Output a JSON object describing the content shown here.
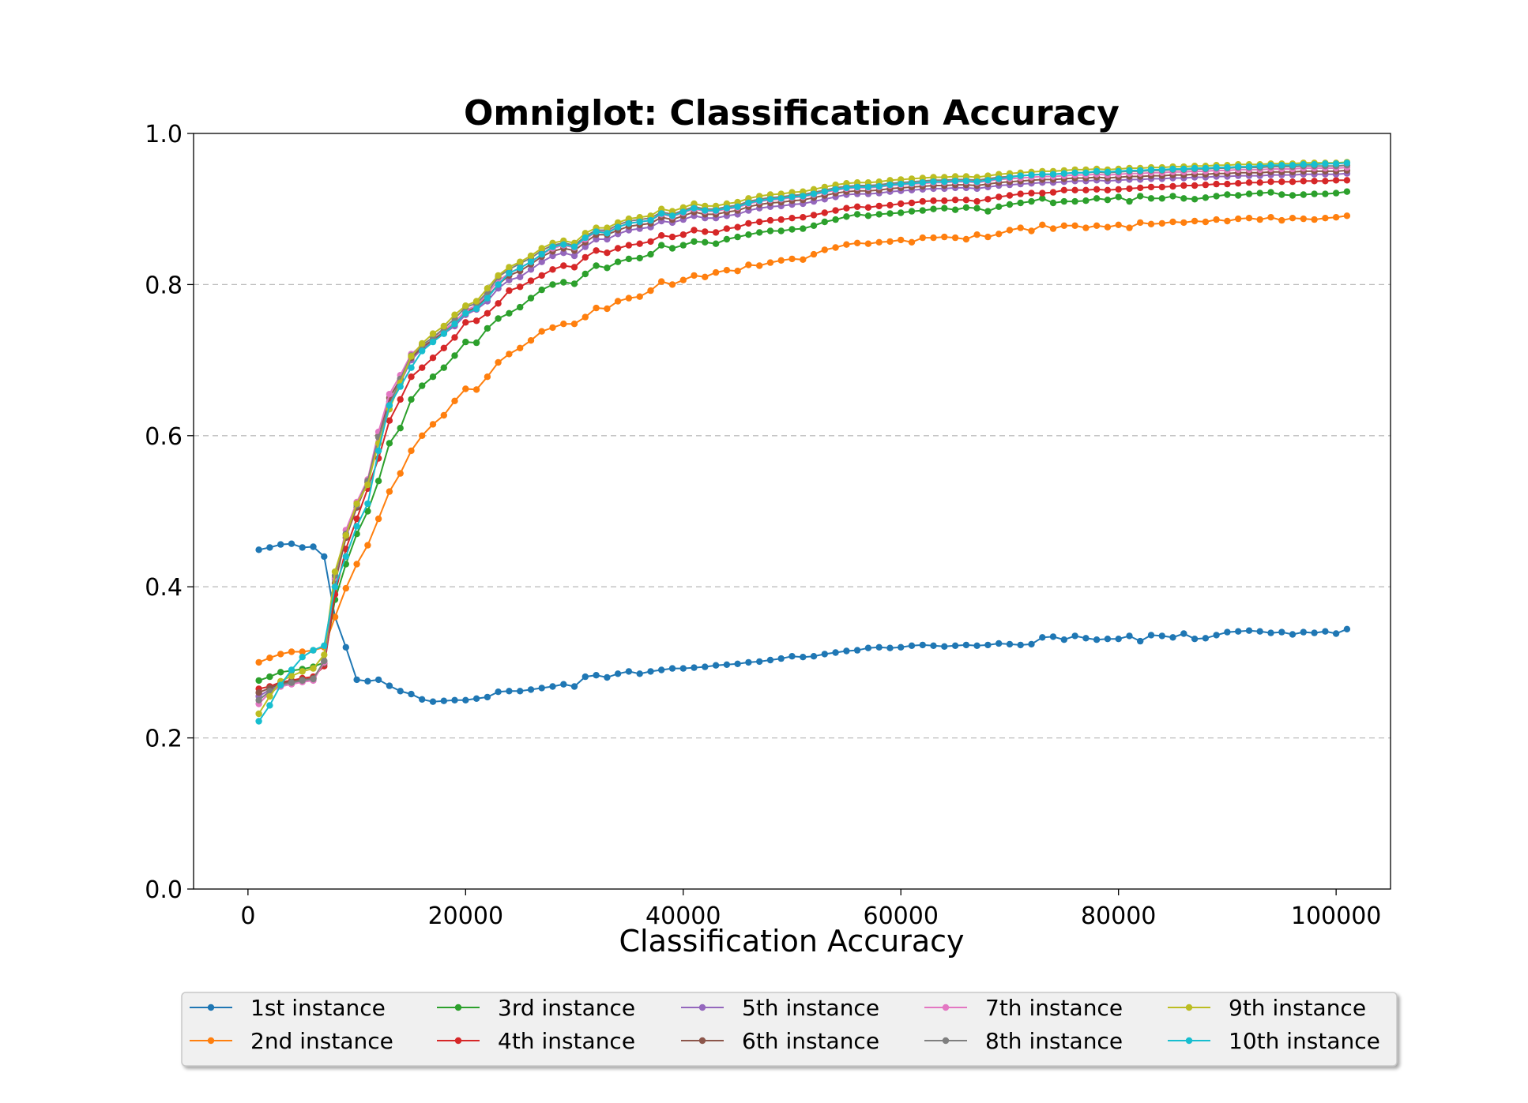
{
  "chart_data": {
    "type": "line",
    "title": "Omniglot: Classification Accuracy",
    "xlabel": "Classification Accuracy",
    "ylabel": "",
    "xlim": [
      -5000,
      105000
    ],
    "ylim": [
      0.0,
      1.0
    ],
    "xticks": [
      0,
      20000,
      40000,
      60000,
      80000,
      100000
    ],
    "xtick_labels": [
      "0",
      "20000",
      "40000",
      "60000",
      "80000",
      "100000"
    ],
    "yticks": [
      0.0,
      0.2,
      0.4,
      0.6,
      0.8,
      1.0
    ],
    "ytick_labels": [
      "0.0",
      "0.2",
      "0.4",
      "0.6",
      "0.8",
      "1.0"
    ],
    "grid": "horizontal dashed",
    "legend_position": "bottom, outside plot, 5 columns",
    "x_start": 1000,
    "x_step": 1000,
    "series": [
      {
        "name": "1st instance",
        "color": "#1f77b4",
        "values": [
          0.449,
          0.452,
          0.456,
          0.457,
          0.452,
          0.453,
          0.44,
          0.36,
          0.32,
          0.277,
          0.275,
          0.277,
          0.269,
          0.262,
          0.258,
          0.251,
          0.248,
          0.249,
          0.25,
          0.25,
          0.252,
          0.254,
          0.261,
          0.262,
          0.262,
          0.264,
          0.266,
          0.268,
          0.271,
          0.268,
          0.281,
          0.283,
          0.28,
          0.285,
          0.288,
          0.285,
          0.288,
          0.29,
          0.292,
          0.292,
          0.293,
          0.294,
          0.296,
          0.297,
          0.298,
          0.3,
          0.301,
          0.303,
          0.305,
          0.308,
          0.307,
          0.308,
          0.311,
          0.313,
          0.315,
          0.316,
          0.319,
          0.32,
          0.319,
          0.32,
          0.322,
          0.323,
          0.322,
          0.321,
          0.322,
          0.323,
          0.322,
          0.323,
          0.325,
          0.324,
          0.323,
          0.324,
          0.333,
          0.334,
          0.33,
          0.335,
          0.332,
          0.33,
          0.331,
          0.331,
          0.335,
          0.328,
          0.336,
          0.335,
          0.333,
          0.338,
          0.331,
          0.332,
          0.336,
          0.34,
          0.341,
          0.342,
          0.341,
          0.339,
          0.34,
          0.337,
          0.34,
          0.339,
          0.341,
          0.338,
          0.344
        ]
      },
      {
        "name": "2nd instance",
        "color": "#ff7f0e",
        "values": [
          0.3,
          0.306,
          0.311,
          0.314,
          0.314,
          0.316,
          0.32,
          0.36,
          0.398,
          0.43,
          0.455,
          0.49,
          0.526,
          0.55,
          0.58,
          0.6,
          0.615,
          0.627,
          0.646,
          0.662,
          0.661,
          0.678,
          0.697,
          0.708,
          0.716,
          0.726,
          0.738,
          0.743,
          0.748,
          0.748,
          0.757,
          0.769,
          0.768,
          0.778,
          0.782,
          0.784,
          0.792,
          0.804,
          0.8,
          0.806,
          0.812,
          0.81,
          0.816,
          0.819,
          0.818,
          0.826,
          0.825,
          0.829,
          0.832,
          0.834,
          0.833,
          0.84,
          0.846,
          0.849,
          0.853,
          0.855,
          0.854,
          0.856,
          0.857,
          0.859,
          0.856,
          0.862,
          0.862,
          0.863,
          0.862,
          0.86,
          0.866,
          0.863,
          0.867,
          0.872,
          0.875,
          0.871,
          0.879,
          0.874,
          0.878,
          0.878,
          0.875,
          0.878,
          0.876,
          0.879,
          0.875,
          0.882,
          0.88,
          0.881,
          0.883,
          0.882,
          0.884,
          0.883,
          0.886,
          0.884,
          0.887,
          0.888,
          0.886,
          0.889,
          0.885,
          0.888,
          0.887,
          0.886,
          0.888,
          0.889,
          0.891
        ]
      },
      {
        "name": "3rd instance",
        "color": "#2ca02c",
        "values": [
          0.276,
          0.281,
          0.287,
          0.289,
          0.291,
          0.294,
          0.3,
          0.383,
          0.43,
          0.47,
          0.5,
          0.54,
          0.59,
          0.61,
          0.648,
          0.666,
          0.678,
          0.69,
          0.706,
          0.724,
          0.723,
          0.742,
          0.755,
          0.762,
          0.77,
          0.782,
          0.793,
          0.8,
          0.803,
          0.801,
          0.814,
          0.825,
          0.822,
          0.83,
          0.834,
          0.835,
          0.84,
          0.852,
          0.848,
          0.852,
          0.857,
          0.856,
          0.854,
          0.86,
          0.863,
          0.866,
          0.869,
          0.871,
          0.871,
          0.873,
          0.874,
          0.878,
          0.883,
          0.886,
          0.89,
          0.893,
          0.891,
          0.893,
          0.894,
          0.895,
          0.897,
          0.898,
          0.9,
          0.901,
          0.899,
          0.902,
          0.901,
          0.897,
          0.903,
          0.906,
          0.908,
          0.91,
          0.914,
          0.908,
          0.91,
          0.91,
          0.911,
          0.914,
          0.912,
          0.916,
          0.91,
          0.917,
          0.914,
          0.914,
          0.917,
          0.914,
          0.913,
          0.915,
          0.917,
          0.919,
          0.918,
          0.92,
          0.921,
          0.922,
          0.919,
          0.918,
          0.919,
          0.92,
          0.92,
          0.921,
          0.923
        ]
      },
      {
        "name": "4th instance",
        "color": "#d62728",
        "values": [
          0.265,
          0.268,
          0.274,
          0.276,
          0.279,
          0.281,
          0.295,
          0.39,
          0.45,
          0.49,
          0.53,
          0.57,
          0.62,
          0.648,
          0.678,
          0.69,
          0.703,
          0.716,
          0.73,
          0.75,
          0.752,
          0.762,
          0.775,
          0.792,
          0.797,
          0.805,
          0.812,
          0.82,
          0.825,
          0.823,
          0.836,
          0.845,
          0.842,
          0.848,
          0.852,
          0.854,
          0.857,
          0.865,
          0.863,
          0.866,
          0.872,
          0.87,
          0.869,
          0.874,
          0.876,
          0.881,
          0.883,
          0.885,
          0.886,
          0.888,
          0.889,
          0.892,
          0.895,
          0.898,
          0.901,
          0.903,
          0.902,
          0.904,
          0.905,
          0.907,
          0.908,
          0.91,
          0.911,
          0.911,
          0.912,
          0.912,
          0.91,
          0.913,
          0.916,
          0.918,
          0.92,
          0.921,
          0.921,
          0.922,
          0.925,
          0.925,
          0.925,
          0.926,
          0.925,
          0.926,
          0.927,
          0.928,
          0.929,
          0.929,
          0.93,
          0.931,
          0.931,
          0.932,
          0.933,
          0.933,
          0.934,
          0.935,
          0.935,
          0.936,
          0.936,
          0.936,
          0.937,
          0.937,
          0.937,
          0.938,
          0.938
        ]
      },
      {
        "name": "5th instance",
        "color": "#9467bd",
        "values": [
          0.255,
          0.264,
          0.271,
          0.274,
          0.276,
          0.278,
          0.3,
          0.41,
          0.47,
          0.51,
          0.54,
          0.59,
          0.645,
          0.67,
          0.7,
          0.715,
          0.725,
          0.735,
          0.745,
          0.76,
          0.767,
          0.778,
          0.795,
          0.806,
          0.81,
          0.82,
          0.83,
          0.838,
          0.842,
          0.838,
          0.85,
          0.86,
          0.86,
          0.867,
          0.872,
          0.874,
          0.876,
          0.884,
          0.882,
          0.886,
          0.891,
          0.888,
          0.888,
          0.891,
          0.893,
          0.898,
          0.901,
          0.903,
          0.904,
          0.906,
          0.907,
          0.91,
          0.913,
          0.916,
          0.919,
          0.92,
          0.92,
          0.921,
          0.923,
          0.924,
          0.925,
          0.926,
          0.927,
          0.927,
          0.928,
          0.928,
          0.927,
          0.929,
          0.931,
          0.932,
          0.933,
          0.934,
          0.935,
          0.935,
          0.936,
          0.937,
          0.937,
          0.938,
          0.937,
          0.938,
          0.939,
          0.939,
          0.94,
          0.94,
          0.941,
          0.941,
          0.942,
          0.942,
          0.943,
          0.943,
          0.944,
          0.944,
          0.944,
          0.945,
          0.945,
          0.945,
          0.946,
          0.946,
          0.946,
          0.946,
          0.947
        ]
      },
      {
        "name": "6th instance",
        "color": "#8c564b",
        "values": [
          0.26,
          0.266,
          0.272,
          0.275,
          0.277,
          0.279,
          0.298,
          0.405,
          0.465,
          0.505,
          0.538,
          0.6,
          0.65,
          0.675,
          0.703,
          0.717,
          0.727,
          0.737,
          0.748,
          0.764,
          0.77,
          0.784,
          0.8,
          0.812,
          0.818,
          0.827,
          0.837,
          0.844,
          0.848,
          0.845,
          0.856,
          0.866,
          0.866,
          0.872,
          0.877,
          0.879,
          0.881,
          0.889,
          0.886,
          0.891,
          0.896,
          0.893,
          0.893,
          0.896,
          0.898,
          0.903,
          0.906,
          0.908,
          0.909,
          0.911,
          0.912,
          0.915,
          0.918,
          0.921,
          0.923,
          0.924,
          0.924,
          0.925,
          0.927,
          0.928,
          0.929,
          0.93,
          0.931,
          0.931,
          0.932,
          0.932,
          0.931,
          0.933,
          0.935,
          0.936,
          0.937,
          0.938,
          0.939,
          0.939,
          0.94,
          0.941,
          0.941,
          0.942,
          0.941,
          0.942,
          0.943,
          0.943,
          0.944,
          0.944,
          0.945,
          0.945,
          0.946,
          0.946,
          0.947,
          0.947,
          0.948,
          0.948,
          0.948,
          0.949,
          0.949,
          0.949,
          0.95,
          0.95,
          0.95,
          0.95,
          0.951
        ]
      },
      {
        "name": "7th instance",
        "color": "#e377c2",
        "values": [
          0.245,
          0.26,
          0.268,
          0.271,
          0.274,
          0.276,
          0.3,
          0.412,
          0.475,
          0.512,
          0.542,
          0.605,
          0.655,
          0.68,
          0.708,
          0.72,
          0.73,
          0.74,
          0.75,
          0.766,
          0.772,
          0.788,
          0.805,
          0.815,
          0.822,
          0.83,
          0.84,
          0.848,
          0.852,
          0.849,
          0.86,
          0.87,
          0.87,
          0.876,
          0.881,
          0.883,
          0.885,
          0.893,
          0.89,
          0.895,
          0.9,
          0.897,
          0.897,
          0.9,
          0.902,
          0.907,
          0.91,
          0.912,
          0.913,
          0.915,
          0.916,
          0.919,
          0.922,
          0.925,
          0.927,
          0.928,
          0.928,
          0.929,
          0.931,
          0.932,
          0.933,
          0.934,
          0.935,
          0.935,
          0.936,
          0.936,
          0.935,
          0.937,
          0.939,
          0.94,
          0.941,
          0.942,
          0.943,
          0.943,
          0.944,
          0.945,
          0.945,
          0.946,
          0.945,
          0.946,
          0.947,
          0.947,
          0.948,
          0.948,
          0.949,
          0.949,
          0.95,
          0.95,
          0.951,
          0.951,
          0.952,
          0.952,
          0.952,
          0.953,
          0.953,
          0.953,
          0.954,
          0.954,
          0.954,
          0.954,
          0.955
        ]
      },
      {
        "name": "8th instance",
        "color": "#7f7f7f",
        "values": [
          0.25,
          0.262,
          0.27,
          0.273,
          0.276,
          0.278,
          0.302,
          0.415,
          0.47,
          0.508,
          0.54,
          0.598,
          0.64,
          0.675,
          0.706,
          0.72,
          0.73,
          0.742,
          0.755,
          0.77,
          0.775,
          0.79,
          0.81,
          0.82,
          0.828,
          0.835,
          0.845,
          0.852,
          0.855,
          0.852,
          0.864,
          0.872,
          0.872,
          0.879,
          0.884,
          0.886,
          0.888,
          0.896,
          0.893,
          0.898,
          0.903,
          0.9,
          0.9,
          0.903,
          0.905,
          0.91,
          0.913,
          0.915,
          0.916,
          0.918,
          0.919,
          0.922,
          0.925,
          0.928,
          0.93,
          0.931,
          0.931,
          0.932,
          0.934,
          0.935,
          0.936,
          0.937,
          0.938,
          0.938,
          0.939,
          0.939,
          0.938,
          0.94,
          0.942,
          0.943,
          0.944,
          0.945,
          0.946,
          0.946,
          0.947,
          0.948,
          0.948,
          0.949,
          0.948,
          0.949,
          0.95,
          0.95,
          0.951,
          0.951,
          0.952,
          0.952,
          0.953,
          0.953,
          0.954,
          0.954,
          0.955,
          0.955,
          0.955,
          0.956,
          0.956,
          0.956,
          0.957,
          0.957,
          0.957,
          0.957,
          0.958
        ]
      },
      {
        "name": "9th instance",
        "color": "#bcbd22",
        "values": [
          0.232,
          0.255,
          0.275,
          0.282,
          0.288,
          0.292,
          0.31,
          0.42,
          0.468,
          0.51,
          0.535,
          0.59,
          0.635,
          0.67,
          0.705,
          0.722,
          0.735,
          0.745,
          0.76,
          0.772,
          0.778,
          0.795,
          0.812,
          0.823,
          0.83,
          0.838,
          0.848,
          0.855,
          0.858,
          0.855,
          0.868,
          0.875,
          0.875,
          0.882,
          0.887,
          0.889,
          0.891,
          0.9,
          0.897,
          0.902,
          0.907,
          0.904,
          0.904,
          0.907,
          0.909,
          0.914,
          0.917,
          0.919,
          0.92,
          0.922,
          0.923,
          0.926,
          0.929,
          0.932,
          0.934,
          0.935,
          0.935,
          0.936,
          0.938,
          0.939,
          0.94,
          0.941,
          0.942,
          0.942,
          0.943,
          0.943,
          0.942,
          0.944,
          0.946,
          0.947,
          0.948,
          0.949,
          0.95,
          0.95,
          0.951,
          0.952,
          0.952,
          0.953,
          0.952,
          0.953,
          0.954,
          0.954,
          0.955,
          0.955,
          0.956,
          0.956,
          0.957,
          0.957,
          0.958,
          0.958,
          0.959,
          0.959,
          0.959,
          0.96,
          0.96,
          0.96,
          0.961,
          0.961,
          0.961,
          0.961,
          0.962
        ]
      },
      {
        "name": "10th instance",
        "color": "#17becf",
        "values": [
          0.222,
          0.243,
          0.27,
          0.29,
          0.307,
          0.316,
          0.322,
          0.4,
          0.44,
          0.48,
          0.51,
          0.58,
          0.64,
          0.665,
          0.69,
          0.712,
          0.724,
          0.735,
          0.748,
          0.762,
          0.768,
          0.782,
          0.8,
          0.815,
          0.822,
          0.83,
          0.84,
          0.85,
          0.853,
          0.85,
          0.862,
          0.87,
          0.868,
          0.876,
          0.881,
          0.883,
          0.885,
          0.894,
          0.891,
          0.896,
          0.901,
          0.898,
          0.898,
          0.901,
          0.903,
          0.908,
          0.911,
          0.913,
          0.914,
          0.916,
          0.917,
          0.92,
          0.923,
          0.926,
          0.928,
          0.929,
          0.929,
          0.93,
          0.932,
          0.933,
          0.934,
          0.935,
          0.936,
          0.936,
          0.937,
          0.937,
          0.936,
          0.938,
          0.94,
          0.942,
          0.944,
          0.945,
          0.946,
          0.946,
          0.947,
          0.948,
          0.948,
          0.95,
          0.949,
          0.95,
          0.951,
          0.951,
          0.952,
          0.952,
          0.953,
          0.953,
          0.954,
          0.954,
          0.955,
          0.955,
          0.956,
          0.956,
          0.957,
          0.958,
          0.958,
          0.958,
          0.959,
          0.959,
          0.96,
          0.96,
          0.961
        ]
      }
    ]
  }
}
